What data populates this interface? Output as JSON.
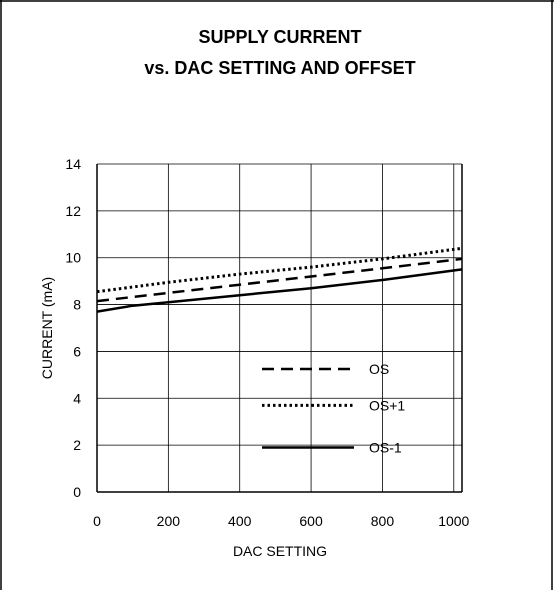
{
  "chart_data": {
    "type": "line",
    "title_lines": [
      "SUPPLY CURRENT",
      "vs. DAC SETTING AND OFFSET"
    ],
    "xlabel": "DAC SETTING",
    "ylabel": "CURRENT (mA)",
    "xlim": [
      0,
      1023
    ],
    "ylim": [
      0,
      14
    ],
    "x_ticks": [
      "0",
      "200",
      "400",
      "600",
      "800",
      "1000"
    ],
    "y_ticks": [
      "0",
      "2",
      "4",
      "6",
      "8",
      "10",
      "12",
      "14"
    ],
    "grid": true,
    "legend_position": "inside-lower-right",
    "series": [
      {
        "name": "OS",
        "style": "dashed",
        "x": [
          0,
          200,
          400,
          600,
          800,
          1023
        ],
        "y": [
          8.15,
          8.5,
          8.85,
          9.2,
          9.55,
          9.95
        ]
      },
      {
        "name": "OS+1",
        "style": "dotted",
        "x": [
          0,
          200,
          400,
          600,
          800,
          1023
        ],
        "y": [
          8.55,
          8.95,
          9.3,
          9.6,
          9.95,
          10.4
        ]
      },
      {
        "name": "OS-1",
        "style": "solid",
        "x": [
          0,
          100,
          200,
          400,
          600,
          800,
          1023
        ],
        "y": [
          7.7,
          7.95,
          8.1,
          8.4,
          8.7,
          9.05,
          9.5
        ]
      }
    ],
    "colors": {
      "lines": "#000000",
      "grid": "#000000",
      "border": "#000000"
    }
  }
}
